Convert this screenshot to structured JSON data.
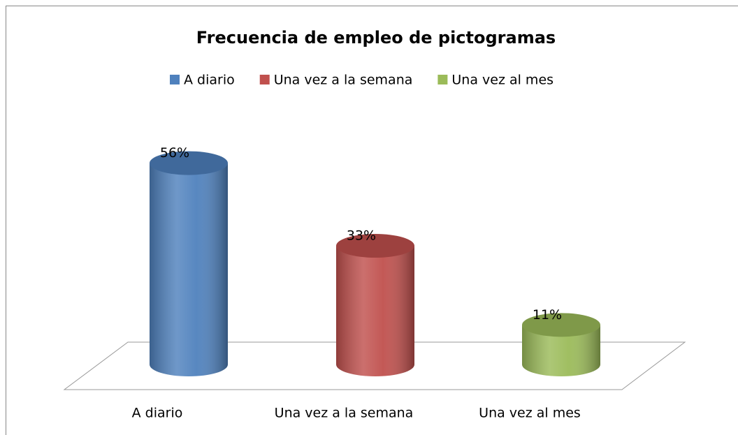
{
  "chart_data": {
    "type": "bar",
    "title": "Frecuencia de empleo de pictogramas",
    "categories": [
      "A diario",
      "Una vez a la semana",
      "Una vez al mes"
    ],
    "values": [
      56,
      33,
      11
    ],
    "value_labels": [
      "56%",
      "33%",
      "11%"
    ],
    "colors": [
      "#4f81bd",
      "#c0504d",
      "#9bbb59"
    ],
    "legend": "top"
  }
}
